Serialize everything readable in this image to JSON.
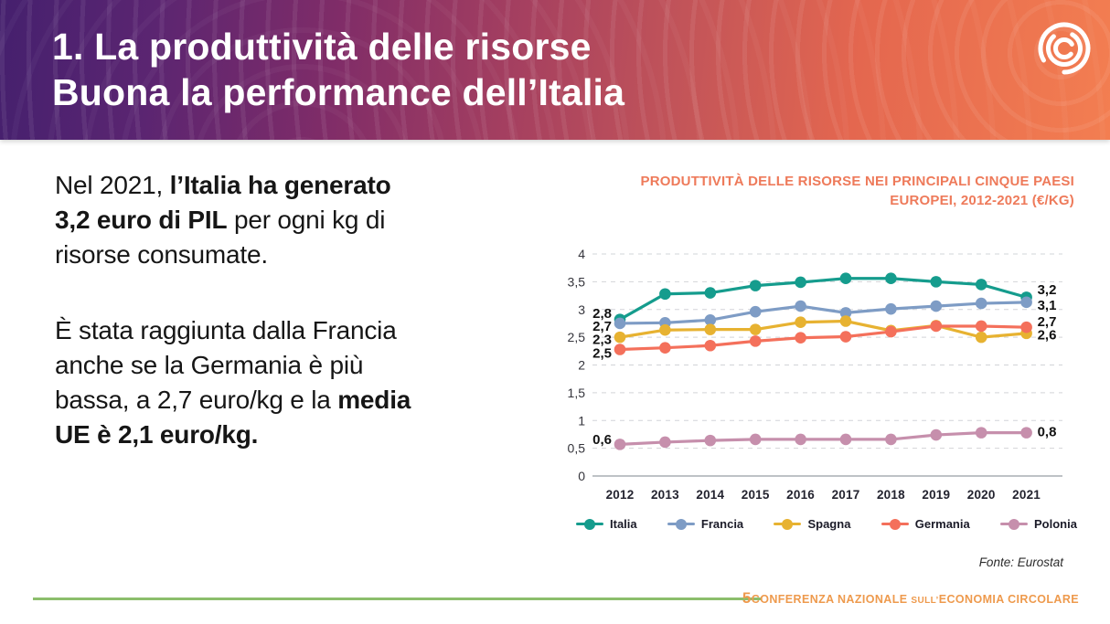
{
  "header": {
    "title_line1": "1. La produttività delle risorse",
    "title_line2": "Buona la performance dell’Italia",
    "logo_icon": "circular-economy-logo"
  },
  "intro": {
    "p1_pre": "Nel 2021, ",
    "p1_bold": "l’Italia ha generato 3,2 euro di PIL",
    "p1_post": " per ogni kg di risorse consumate.",
    "p2_pre": "È stata raggiunta dalla Francia anche se la Germania è più bassa, a 2,7 euro/kg e la ",
    "p2_bold": "media UE è 2,1 euro/kg."
  },
  "chart_data": {
    "type": "line",
    "title": "PRODUTTIVITÀ DELLE RISORSE NEI PRINCIPALI CINQUE PAESI EUROPEI, 2012-2021 (€/KG)",
    "source": "Fonte: Eurostat",
    "categories": [
      "2012",
      "2013",
      "2014",
      "2015",
      "2016",
      "2017",
      "2018",
      "2019",
      "2020",
      "2021"
    ],
    "ylim": [
      0,
      4
    ],
    "grid": "dashed-horizontal",
    "legend_position": "bottom",
    "yticks": [
      {
        "v": 4,
        "label": "4"
      },
      {
        "v": 3.5,
        "label": "3,5"
      },
      {
        "v": 3,
        "label": "3"
      },
      {
        "v": 2.5,
        "label": "2,5"
      },
      {
        "v": 2,
        "label": "2"
      },
      {
        "v": 1.5,
        "label": "1,5"
      },
      {
        "v": 1,
        "label": "1"
      },
      {
        "v": 0.5,
        "label": "0,5"
      },
      {
        "v": 0,
        "label": "0"
      }
    ],
    "series": [
      {
        "name": "Italia",
        "color": "#159C8D",
        "values": [
          2.82,
          3.28,
          3.3,
          3.43,
          3.49,
          3.56,
          3.56,
          3.5,
          3.45,
          3.22
        ]
      },
      {
        "name": "Francia",
        "color": "#7E9CC5",
        "values": [
          2.75,
          2.76,
          2.81,
          2.96,
          3.06,
          2.94,
          3.01,
          3.06,
          3.11,
          3.13
        ]
      },
      {
        "name": "Spagna",
        "color": "#E7B231",
        "values": [
          2.5,
          2.63,
          2.64,
          2.64,
          2.77,
          2.79,
          2.62,
          2.71,
          2.5,
          2.57
        ]
      },
      {
        "name": "Germania",
        "color": "#F4705B",
        "values": [
          2.28,
          2.31,
          2.35,
          2.43,
          2.49,
          2.51,
          2.6,
          2.7,
          2.7,
          2.68
        ]
      },
      {
        "name": "Polonia",
        "color": "#C68FAC",
        "values": [
          0.57,
          0.61,
          0.64,
          0.66,
          0.66,
          0.66,
          0.66,
          0.74,
          0.78,
          0.78
        ]
      }
    ],
    "annotations": [
      {
        "text": "2,8",
        "value": 2.93,
        "side": "left"
      },
      {
        "text": "2,7",
        "value": 2.7,
        "side": "left"
      },
      {
        "text": "2,3",
        "value": 2.46,
        "side": "left"
      },
      {
        "text": "2,5",
        "value": 2.21,
        "side": "left"
      },
      {
        "text": "0,6",
        "value": 0.66,
        "side": "left"
      },
      {
        "text": "3,2",
        "value": 3.36,
        "side": "right"
      },
      {
        "text": "3,1",
        "value": 3.08,
        "side": "right"
      },
      {
        "text": "2,7",
        "value": 2.78,
        "side": "right"
      },
      {
        "text": "2,6",
        "value": 2.54,
        "side": "right"
      },
      {
        "text": "0,8",
        "value": 0.8,
        "side": "right"
      }
    ]
  },
  "footer": {
    "number": "5",
    "part1": "CONFERENZA NAZIONALE ",
    "part2": "SULL’",
    "part3": "ECONOMIA CIRCOLARE"
  }
}
